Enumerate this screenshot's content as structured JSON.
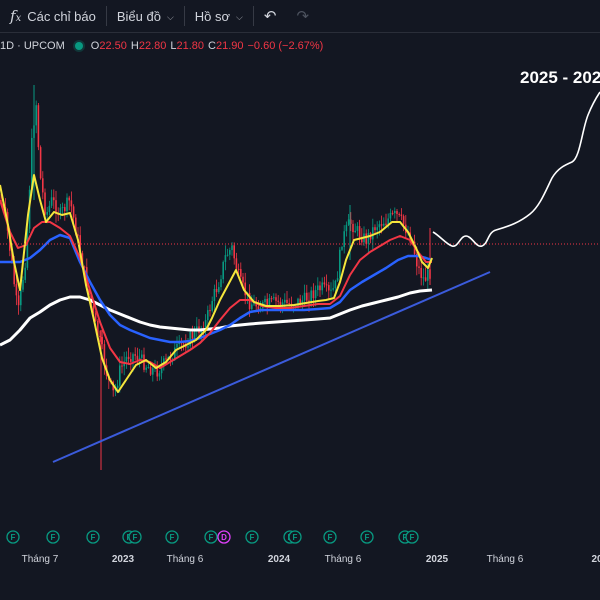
{
  "toolbar": {
    "indicators_label": "Các chỉ báo",
    "chart_label": "Biểu đồ",
    "profile_label": "Hồ sơ"
  },
  "legend": {
    "symbol": "1D · UPCOM",
    "o_key": "O",
    "o_val": "22.50",
    "h_key": "H",
    "h_val": "22.80",
    "l_key": "L",
    "l_val": "21.80",
    "c_key": "C",
    "c_val": "21.90",
    "change": "−0.60 (−2.67%)"
  },
  "annotation": {
    "text": "2025 - 202"
  },
  "time_axis": [
    {
      "label": "Tháng 7",
      "bold": false
    },
    {
      "label": "2023",
      "bold": true
    },
    {
      "label": "Tháng 6",
      "bold": false
    },
    {
      "label": "2024",
      "bold": true
    },
    {
      "label": "Tháng 6",
      "bold": false
    },
    {
      "label": "2025",
      "bold": true
    },
    {
      "label": "Tháng 6",
      "bold": false
    },
    {
      "label": "20",
      "bold": true
    }
  ],
  "events": [
    "F",
    "F",
    "F",
    "F",
    "F",
    "F",
    "F",
    "D",
    "F",
    "F",
    "F",
    "F",
    "F",
    "F",
    "F"
  ],
  "colors": {
    "background": "#131722",
    "up": "#089981",
    "down": "#f23645",
    "ma_yellow": "#f5e63c",
    "ma_red": "#f23645",
    "ma_blue": "#2962ff",
    "ma_white": "#ffffff",
    "trendline": "#3b5bdb",
    "price_line": "#f23645",
    "projection": "#ffffff"
  },
  "chart_data": {
    "type": "candlestick",
    "symbol": "1D · UPCOM",
    "last_ohlc": {
      "open": 22.5,
      "high": 22.8,
      "low": 21.8,
      "close": 21.9,
      "change": -0.6,
      "change_pct": -2.67
    },
    "x_tick_labels": [
      "Tháng 7",
      "2023",
      "Tháng 6",
      "2024",
      "Tháng 6",
      "2025",
      "Tháng 6",
      "20"
    ],
    "series": [
      {
        "name": "price",
        "type": "candles"
      },
      {
        "type": "moving_average",
        "color": "yellow"
      },
      {
        "type": "moving_average",
        "color": "red"
      },
      {
        "type": "moving_average",
        "color": "blue"
      },
      {
        "type": "moving_average",
        "color": "white"
      }
    ],
    "drawings": [
      "ascending trendline",
      "projected path",
      "current price line"
    ],
    "annotation": "2025 - 202",
    "grid": false
  }
}
